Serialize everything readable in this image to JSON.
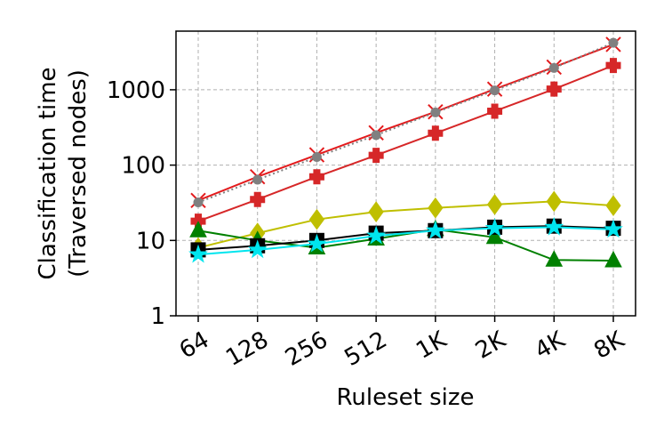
{
  "chart_data": {
    "type": "line",
    "xlabel": "Ruleset size",
    "ylabel": [
      "Classification time",
      "(Traversed nodes)"
    ],
    "categories": [
      "64",
      "128",
      "256",
      "512",
      "1K",
      "2K",
      "4K",
      "8K"
    ],
    "ylog": true,
    "grid": true,
    "ylim": [
      1,
      6000
    ],
    "yticks": [
      1,
      10,
      100,
      1000
    ],
    "series": [
      {
        "color": "#e31a1c",
        "marker": "x",
        "dash": false,
        "values": [
          34,
          70,
          137,
          268,
          510,
          1020,
          2000,
          4000
        ]
      },
      {
        "color": "#808080",
        "marker": "o",
        "dash": true,
        "values": [
          32,
          64,
          128,
          250,
          500,
          980,
          1950,
          4200
        ]
      },
      {
        "color": "#d62728",
        "marker": "P",
        "dash": false,
        "values": [
          18,
          35,
          70,
          135,
          265,
          520,
          1020,
          2100
        ]
      },
      {
        "color": "#bfbf00",
        "marker": "d",
        "dash": false,
        "values": [
          8,
          12.5,
          19,
          24,
          27,
          30,
          33,
          29
        ]
      },
      {
        "color": "#008000",
        "marker": "^",
        "dash": false,
        "values": [
          13.5,
          10,
          8,
          10.5,
          14,
          11,
          5.5,
          5.4
        ]
      },
      {
        "color": "#000000",
        "marker": "s",
        "dash": false,
        "values": [
          7.5,
          8.5,
          10,
          12.5,
          13.5,
          15,
          15.5,
          14.5
        ]
      },
      {
        "color": "#00e5ee",
        "marker": "*",
        "dash": false,
        "values": [
          6.5,
          7.5,
          9,
          11.5,
          13.5,
          14.5,
          15,
          14
        ]
      }
    ]
  }
}
